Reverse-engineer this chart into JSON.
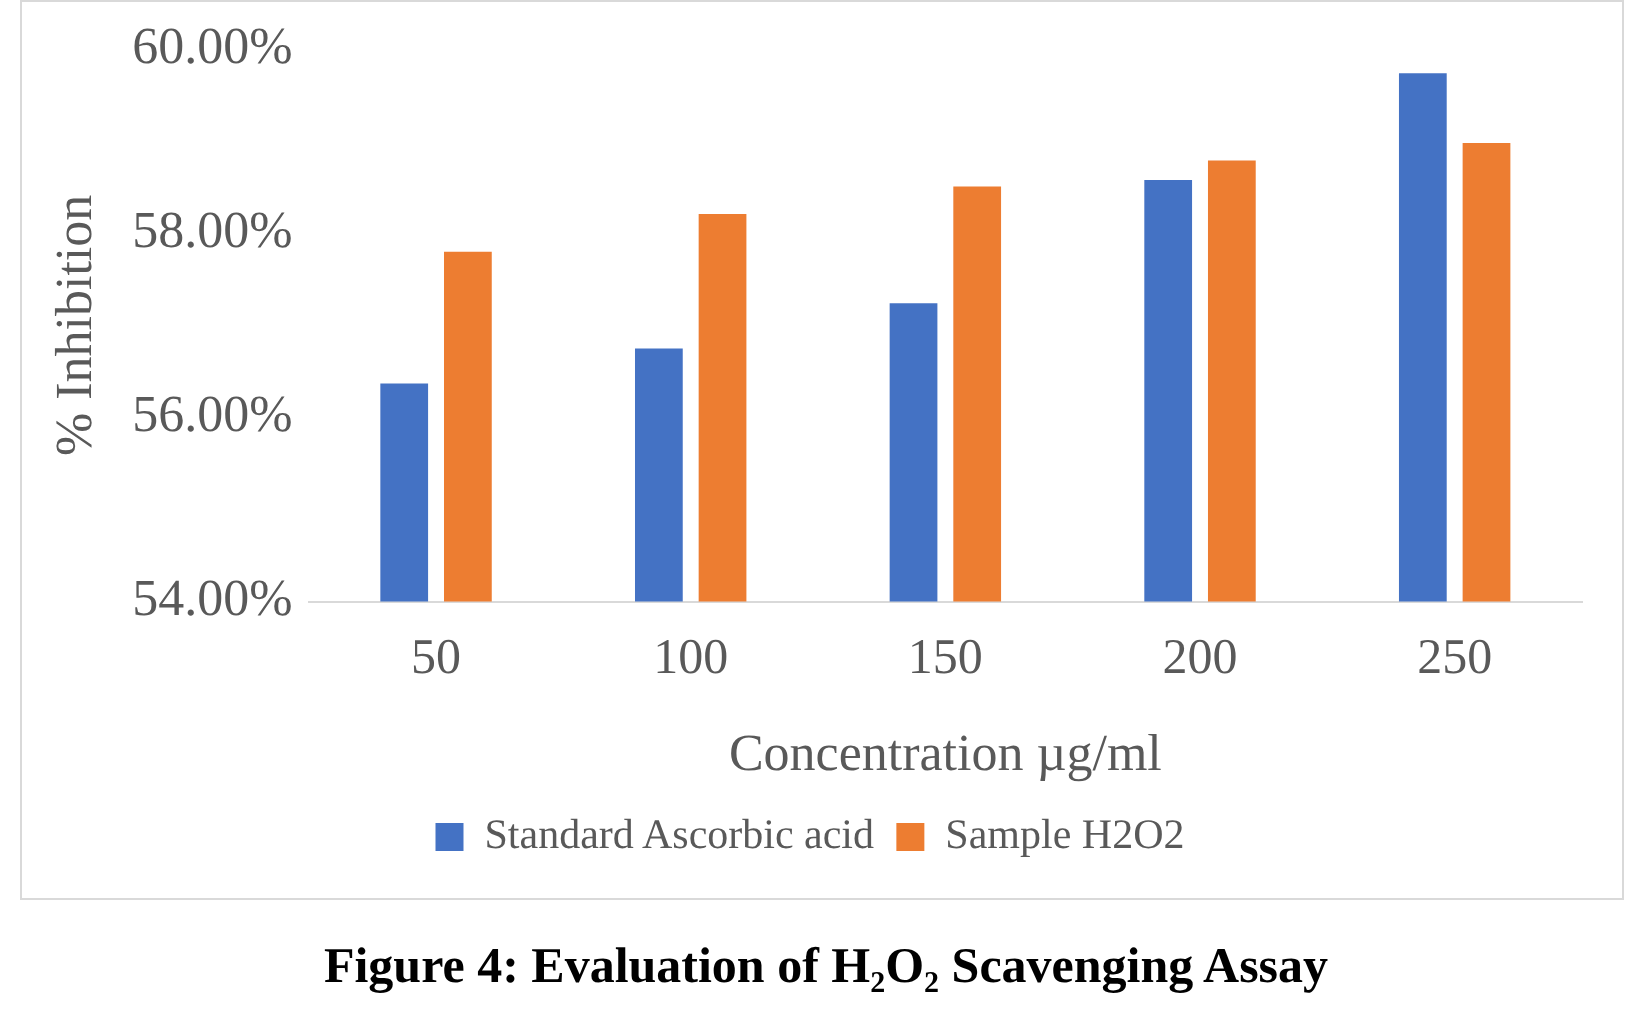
{
  "chart_data": {
    "type": "bar",
    "title": "Figure 4: Evaluation of H₂O₂ Scavenging Assay",
    "xlabel": "Concentration µg/ml",
    "ylabel": "% Inhibition",
    "categories": [
      "50",
      "100",
      "150",
      "200",
      "250"
    ],
    "series": [
      {
        "name": "Standard Ascorbic acid",
        "color": "#4472c4",
        "values": [
          56.37,
          56.75,
          57.24,
          58.58,
          59.74
        ]
      },
      {
        "name": "Sample H2O2",
        "color": "#ed7d31",
        "values": [
          57.8,
          58.21,
          58.51,
          58.79,
          58.98
        ]
      }
    ],
    "ylim": [
      54,
      60
    ],
    "yticks": [
      {
        "value": 54,
        "label": "54.00%"
      },
      {
        "value": 56,
        "label": "56.00%"
      },
      {
        "value": 58,
        "label": "58.00%"
      },
      {
        "value": 60,
        "label": "60.00%"
      }
    ],
    "grid": false,
    "legend": "bottom"
  }
}
